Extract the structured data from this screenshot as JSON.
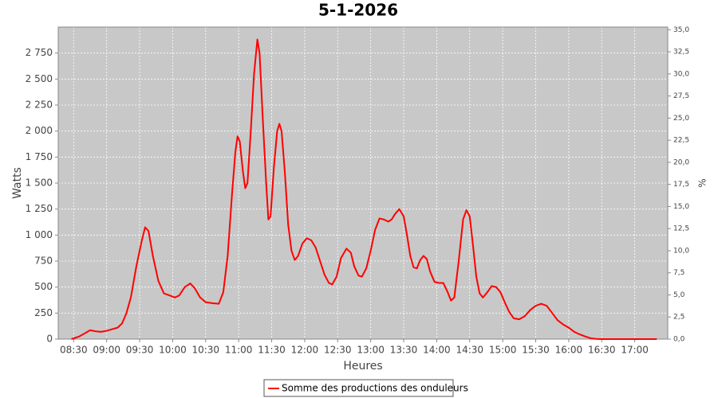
{
  "chart_data": {
    "type": "line",
    "title": "5-1-2026",
    "x_label": "Heures",
    "y_label": "Watts",
    "y2_label": "%",
    "x": [
      "08:28",
      "08:35",
      "08:40",
      "08:45",
      "08:50",
      "08:55",
      "09:00",
      "09:05",
      "09:10",
      "09:14",
      "09:18",
      "09:22",
      "09:27",
      "09:32",
      "09:35",
      "09:38",
      "09:42",
      "09:47",
      "09:52",
      "09:57",
      "10:02",
      "10:06",
      "10:11",
      "10:16",
      "10:20",
      "10:25",
      "10:30",
      "10:36",
      "10:42",
      "10:46",
      "10:50",
      "10:54",
      "10:57",
      "10:59",
      "11:01",
      "11:04",
      "11:06",
      "11:08",
      "11:11",
      "11:14",
      "11:17",
      "11:19",
      "11:22",
      "11:25",
      "11:27",
      "11:29",
      "11:32",
      "11:35",
      "11:37",
      "11:39",
      "11:42",
      "11:45",
      "11:48",
      "11:51",
      "11:54",
      "11:58",
      "12:02",
      "12:06",
      "12:10",
      "12:14",
      "12:18",
      "12:22",
      "12:25",
      "12:29",
      "12:33",
      "12:38",
      "12:42",
      "12:45",
      "12:49",
      "12:52",
      "12:56",
      "13:00",
      "13:04",
      "13:08",
      "13:12",
      "13:16",
      "13:19",
      "13:22",
      "13:26",
      "13:30",
      "13:33",
      "13:36",
      "13:39",
      "13:42",
      "13:45",
      "13:48",
      "13:51",
      "13:54",
      "13:58",
      "14:02",
      "14:06",
      "14:10",
      "14:13",
      "14:16",
      "14:20",
      "14:24",
      "14:27",
      "14:30",
      "14:33",
      "14:36",
      "14:39",
      "14:42",
      "14:46",
      "14:50",
      "14:54",
      "14:58",
      "15:02",
      "15:06",
      "15:10",
      "15:15",
      "15:20",
      "15:25",
      "15:30",
      "15:35",
      "15:40",
      "15:45",
      "15:50",
      "15:55",
      "16:00",
      "16:05",
      "16:10",
      "16:15",
      "16:20",
      "16:25",
      "16:30",
      "17:20"
    ],
    "series": [
      {
        "name": "Somme des productions des onduleurs",
        "color": "#ff0000",
        "values": [
          0,
          25,
          55,
          85,
          75,
          70,
          80,
          95,
          110,
          150,
          250,
          400,
          700,
          950,
          1075,
          1040,
          800,
          560,
          440,
          420,
          400,
          420,
          500,
          535,
          490,
          400,
          355,
          345,
          340,
          450,
          800,
          1400,
          1800,
          1950,
          1900,
          1600,
          1450,
          1500,
          2000,
          2550,
          2880,
          2750,
          2100,
          1500,
          1150,
          1180,
          1650,
          2000,
          2070,
          2000,
          1600,
          1100,
          850,
          760,
          800,
          920,
          970,
          950,
          880,
          750,
          620,
          540,
          525,
          600,
          780,
          870,
          830,
          700,
          610,
          600,
          680,
          850,
          1050,
          1160,
          1150,
          1130,
          1150,
          1200,
          1250,
          1180,
          1000,
          800,
          690,
          680,
          760,
          800,
          770,
          650,
          550,
          540,
          540,
          450,
          370,
          400,
          750,
          1150,
          1240,
          1180,
          900,
          600,
          440,
          400,
          450,
          510,
          500,
          450,
          350,
          260,
          200,
          190,
          220,
          280,
          320,
          340,
          320,
          250,
          180,
          140,
          110,
          70,
          45,
          25,
          8,
          2,
          0,
          0
        ]
      }
    ],
    "xlim": [
      "08:16",
      "17:30"
    ],
    "xticks": [
      "08:30",
      "09:00",
      "09:30",
      "10:00",
      "10:30",
      "11:00",
      "11:30",
      "12:00",
      "12:30",
      "13:00",
      "13:30",
      "14:00",
      "14:30",
      "15:00",
      "15:30",
      "16:00",
      "16:30",
      "17:00"
    ],
    "ylim": [
      0,
      3000
    ],
    "yticks": [
      0,
      250,
      500,
      750,
      {
        "value": 1000,
        "label": "1 000"
      },
      {
        "value": 1250,
        "label": "1 250"
      },
      {
        "value": 1500,
        "label": "1 500"
      },
      {
        "value": 1750,
        "label": "1 750"
      },
      {
        "value": 2000,
        "label": "2 000"
      },
      {
        "value": 2250,
        "label": "2 250"
      },
      {
        "value": 2500,
        "label": "2 500"
      },
      {
        "value": 2750,
        "label": "2 750"
      }
    ],
    "y2lim": [
      0,
      35.3
    ],
    "y2ticks": [
      {
        "value": 0,
        "label": "0,0"
      },
      {
        "value": 2.5,
        "label": "2,5"
      },
      {
        "value": 5,
        "label": "5,0"
      },
      {
        "value": 7.5,
        "label": "7,5"
      },
      {
        "value": 10,
        "label": "10,0"
      },
      {
        "value": 12.5,
        "label": "12,5"
      },
      {
        "value": 15,
        "label": "15,0"
      },
      {
        "value": 17.5,
        "label": "17,5"
      },
      {
        "value": 20,
        "label": "20,0"
      },
      {
        "value": 22.5,
        "label": "22,5"
      },
      {
        "value": 25,
        "label": "25,0"
      },
      {
        "value": 27.5,
        "label": "27,5"
      },
      {
        "value": 30,
        "label": "30,0"
      },
      {
        "value": 32.5,
        "label": "32,5"
      },
      {
        "value": 35,
        "label": "35,0"
      }
    ],
    "grid": true,
    "plot_background": "#c8c8c8",
    "legend": "bottom"
  }
}
